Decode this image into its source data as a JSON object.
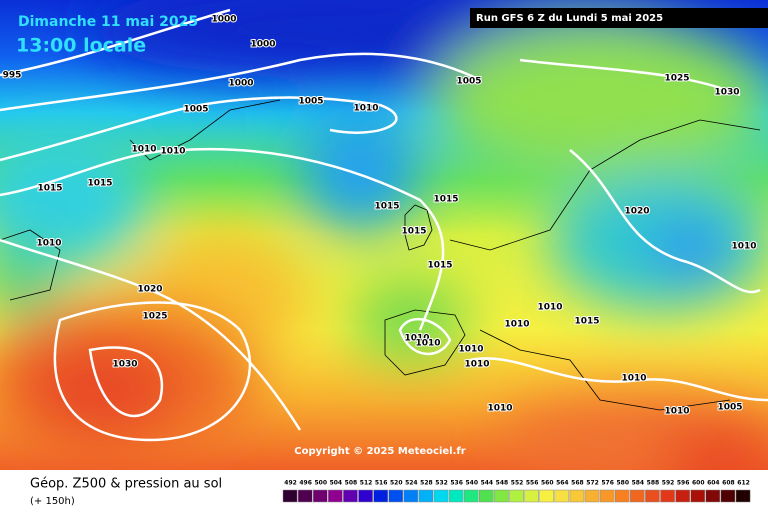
{
  "header": {
    "date": "Dimanche 11 mai 2025",
    "time": "13:00 locale",
    "run": "Run GFS 6 Z du Lundi 5 mai 2025"
  },
  "map": {
    "copyright": "Copyright © 2025 Meteociel.fr",
    "isobar_labels": [
      "1000",
      "1000",
      "995",
      "1000",
      "1005",
      "1025",
      "1030",
      "1005",
      "1005",
      "1010",
      "1010",
      "1010",
      "1015",
      "1015",
      "1015",
      "1015",
      "1020",
      "1015",
      "1010",
      "1010",
      "1015",
      "1020",
      "1010",
      "1025",
      "1010",
      "1015",
      "1010",
      "1010",
      "1010",
      "1030",
      "1010",
      "1010",
      "1010",
      "1010",
      "1005"
    ]
  },
  "footer": {
    "title": "Géop. Z500 & pression au sol",
    "subtitle": "(+ 150h)",
    "legend_levels": [
      492,
      496,
      500,
      504,
      508,
      512,
      516,
      520,
      524,
      528,
      532,
      536,
      540,
      544,
      548,
      552,
      556,
      560,
      564,
      568,
      572,
      576,
      580,
      584,
      588,
      592,
      596,
      600,
      604,
      608,
      612
    ]
  }
}
